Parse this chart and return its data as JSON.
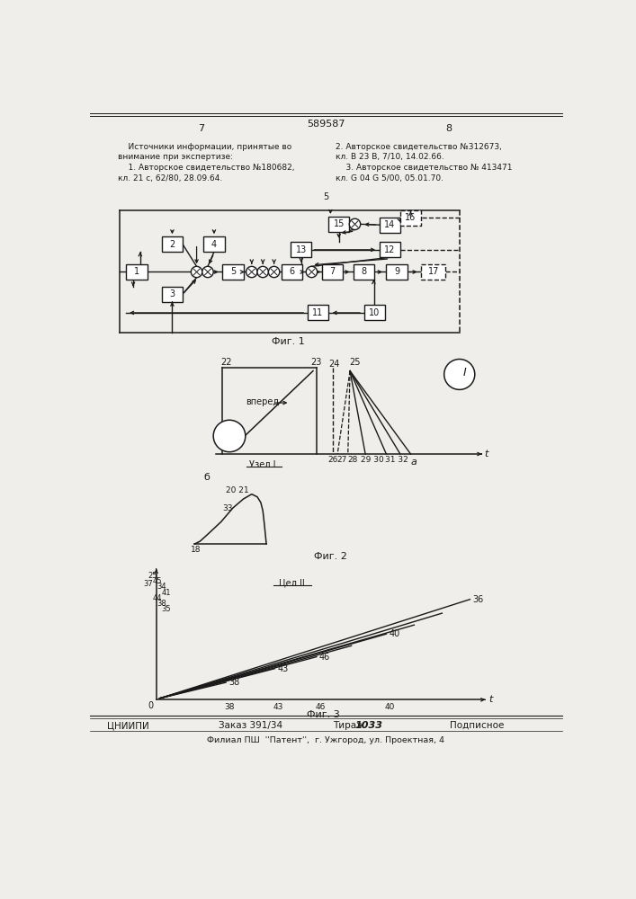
{
  "title": "589587",
  "page_left": "7",
  "page_right": "8",
  "text_left": "    Источники информации, принятые во\nвнимание при экспертизе:\n    1. Авторское свидетельство №180682,\nкл. 21 с, 62/80, 28.09.64.",
  "text_right": "2. Авторское свидетельство №312673,\nкл. В 23 В, 7/10, 14.02.66.\n    3. Авторское свидетельство № 413471\nкл. G 04 G 5/00, 05.01.70.",
  "fig1_label": "Фиг. 1",
  "fig2_label": "Фиг. 2",
  "fig3_label": "Фиг. 3",
  "bottom_left": "ЦНИИПИ",
  "bottom_center1": "Заказ 391/34",
  "bottom_tirazh": "Тираж ",
  "bottom_tirazh_num": "1033",
  "bottom_right": "Подписное",
  "bottom_footer": "Филиал ПШ  ''Патент'',  г. Ужгород, ул. Проектная, 4",
  "bg_color": "#f0eeea",
  "line_color": "#1a1a1a"
}
